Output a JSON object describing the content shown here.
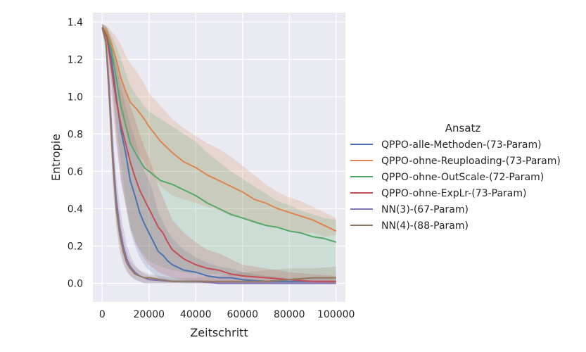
{
  "chart_data": {
    "type": "line",
    "xlabel": "Zeitschritt",
    "ylabel": "Entropie",
    "xlim": [
      -4000,
      104000
    ],
    "ylim": [
      -0.1,
      1.45
    ],
    "xticks": [
      0,
      20000,
      40000,
      60000,
      80000,
      100000
    ],
    "yticks": [
      0.0,
      0.2,
      0.4,
      0.6,
      0.8,
      1.0,
      1.2,
      1.4
    ],
    "grid": true,
    "legend": {
      "title": "Ansatz",
      "placement": "outside-right"
    },
    "series": [
      {
        "name": "QPPO-alle-Methoden-(73-Param)",
        "color": "#4c72b0",
        "x": [
          0,
          2000,
          4000,
          6000,
          8000,
          10000,
          12000,
          14000,
          16000,
          18000,
          20000,
          22000,
          24000,
          26000,
          28000,
          30000,
          35000,
          40000,
          45000,
          50000,
          55000,
          60000,
          70000,
          80000,
          90000,
          100000
        ],
        "y": [
          1.37,
          1.33,
          1.2,
          1.0,
          0.82,
          0.7,
          0.55,
          0.47,
          0.38,
          0.32,
          0.27,
          0.22,
          0.17,
          0.15,
          0.12,
          0.1,
          0.07,
          0.06,
          0.04,
          0.03,
          0.03,
          0.02,
          0.01,
          0.01,
          0.01,
          0.01
        ],
        "lower": [
          1.35,
          1.28,
          1.08,
          0.8,
          0.55,
          0.42,
          0.28,
          0.2,
          0.14,
          0.1,
          0.07,
          0.05,
          0.03,
          0.02,
          0.01,
          0.01,
          0.0,
          0.0,
          0.0,
          0.0,
          0.0,
          0.0,
          0.0,
          0.0,
          0.0,
          0.0
        ],
        "upper": [
          1.39,
          1.37,
          1.3,
          1.18,
          1.05,
          0.95,
          0.85,
          0.78,
          0.68,
          0.6,
          0.55,
          0.48,
          0.38,
          0.33,
          0.28,
          0.24,
          0.18,
          0.14,
          0.11,
          0.09,
          0.08,
          0.06,
          0.04,
          0.03,
          0.03,
          0.03
        ]
      },
      {
        "name": "QPPO-ohne-Reuploading-(73-Param)",
        "color": "#dd8452",
        "x": [
          0,
          2000,
          4000,
          6000,
          8000,
          10000,
          12000,
          15000,
          18000,
          20000,
          25000,
          30000,
          35000,
          40000,
          45000,
          50000,
          55000,
          60000,
          65000,
          70000,
          75000,
          80000,
          85000,
          90000,
          95000,
          100000
        ],
        "y": [
          1.37,
          1.35,
          1.28,
          1.2,
          1.1,
          1.03,
          0.97,
          0.93,
          0.88,
          0.84,
          0.76,
          0.7,
          0.65,
          0.62,
          0.58,
          0.55,
          0.52,
          0.49,
          0.45,
          0.43,
          0.4,
          0.38,
          0.36,
          0.34,
          0.31,
          0.28
        ],
        "lower": [
          1.35,
          1.32,
          1.2,
          1.05,
          0.9,
          0.82,
          0.75,
          0.7,
          0.65,
          0.6,
          0.52,
          0.47,
          0.45,
          0.43,
          0.41,
          0.39,
          0.36,
          0.35,
          0.32,
          0.31,
          0.3,
          0.28,
          0.27,
          0.27,
          0.25,
          0.26
        ],
        "upper": [
          1.39,
          1.38,
          1.35,
          1.32,
          1.28,
          1.22,
          1.18,
          1.13,
          1.07,
          1.02,
          0.95,
          0.88,
          0.83,
          0.79,
          0.75,
          0.72,
          0.68,
          0.63,
          0.58,
          0.53,
          0.49,
          0.46,
          0.44,
          0.41,
          0.38,
          0.35
        ]
      },
      {
        "name": "QPPO-ohne-OutScale-(72-Param)",
        "color": "#55a868",
        "x": [
          0,
          2000,
          4000,
          6000,
          8000,
          10000,
          12000,
          15000,
          18000,
          20000,
          25000,
          30000,
          35000,
          40000,
          45000,
          50000,
          55000,
          60000,
          65000,
          70000,
          75000,
          80000,
          85000,
          90000,
          95000,
          100000
        ],
        "y": [
          1.37,
          1.33,
          1.25,
          1.1,
          0.95,
          0.85,
          0.75,
          0.68,
          0.62,
          0.6,
          0.55,
          0.53,
          0.5,
          0.47,
          0.43,
          0.4,
          0.37,
          0.35,
          0.33,
          0.31,
          0.3,
          0.28,
          0.27,
          0.25,
          0.24,
          0.22
        ],
        "lower": [
          1.35,
          1.28,
          1.1,
          0.85,
          0.65,
          0.45,
          0.3,
          0.2,
          0.15,
          0.12,
          0.09,
          0.07,
          0.06,
          0.05,
          0.05,
          0.05,
          0.04,
          0.04,
          0.03,
          0.03,
          0.03,
          0.03,
          0.02,
          0.02,
          0.02,
          0.02
        ],
        "upper": [
          1.39,
          1.37,
          1.33,
          1.27,
          1.2,
          1.13,
          1.06,
          1.0,
          0.95,
          0.92,
          0.88,
          0.84,
          0.8,
          0.76,
          0.7,
          0.65,
          0.6,
          0.56,
          0.52,
          0.48,
          0.44,
          0.42,
          0.39,
          0.37,
          0.35,
          0.34
        ]
      },
      {
        "name": "QPPO-ohne-ExpLr-(73-Param)",
        "color": "#c44e52",
        "x": [
          0,
          2000,
          4000,
          6000,
          8000,
          10000,
          12000,
          14000,
          16000,
          18000,
          20000,
          22000,
          24000,
          26000,
          28000,
          30000,
          35000,
          40000,
          45000,
          50000,
          55000,
          60000,
          70000,
          80000,
          90000,
          100000
        ],
        "y": [
          1.37,
          1.32,
          1.15,
          0.98,
          0.85,
          0.75,
          0.65,
          0.57,
          0.5,
          0.45,
          0.4,
          0.35,
          0.3,
          0.27,
          0.22,
          0.18,
          0.13,
          0.1,
          0.08,
          0.07,
          0.05,
          0.04,
          0.03,
          0.02,
          0.01,
          0.01
        ],
        "lower": [
          1.35,
          1.25,
          1.0,
          0.75,
          0.55,
          0.42,
          0.3,
          0.22,
          0.17,
          0.13,
          0.1,
          0.08,
          0.06,
          0.05,
          0.04,
          0.03,
          0.02,
          0.01,
          0.0,
          0.0,
          0.0,
          0.0,
          0.0,
          0.0,
          0.0,
          0.0
        ],
        "upper": [
          1.39,
          1.37,
          1.3,
          1.2,
          1.1,
          1.03,
          0.95,
          0.88,
          0.8,
          0.73,
          0.67,
          0.6,
          0.52,
          0.46,
          0.4,
          0.34,
          0.27,
          0.22,
          0.18,
          0.16,
          0.13,
          0.1,
          0.08,
          0.06,
          0.05,
          0.04
        ]
      },
      {
        "name": "NN(3)-(67-Param)",
        "color": "#8172b3",
        "x": [
          0,
          1500,
          3000,
          4500,
          6000,
          7500,
          9000,
          10500,
          12000,
          14000,
          16000,
          18000,
          20000,
          25000,
          30000,
          40000,
          50000,
          60000,
          70000,
          80000,
          90000,
          100000
        ],
        "y": [
          1.37,
          1.3,
          1.05,
          0.7,
          0.45,
          0.3,
          0.2,
          0.13,
          0.09,
          0.06,
          0.04,
          0.03,
          0.02,
          0.015,
          0.01,
          0.01,
          0.0,
          0.0,
          0.0,
          0.0,
          0.0,
          0.0
        ],
        "lower": [
          1.35,
          1.25,
          0.95,
          0.58,
          0.33,
          0.2,
          0.12,
          0.07,
          0.04,
          0.02,
          0.01,
          0.0,
          0.0,
          0.0,
          0.0,
          0.0,
          0.0,
          0.0,
          0.0,
          0.0,
          0.0,
          0.0
        ],
        "upper": [
          1.39,
          1.35,
          1.15,
          0.82,
          0.58,
          0.42,
          0.3,
          0.21,
          0.15,
          0.1,
          0.07,
          0.05,
          0.04,
          0.03,
          0.02,
          0.02,
          0.01,
          0.01,
          0.01,
          0.01,
          0.01,
          0.01
        ]
      },
      {
        "name": "NN(4)-(88-Param)",
        "color": "#937860",
        "x": [
          0,
          1500,
          3000,
          4500,
          6000,
          7500,
          9000,
          10500,
          12000,
          14000,
          16000,
          18000,
          20000,
          25000,
          30000,
          40000,
          50000,
          60000,
          70000,
          80000,
          90000,
          100000
        ],
        "y": [
          1.37,
          1.3,
          1.0,
          0.65,
          0.4,
          0.26,
          0.17,
          0.11,
          0.08,
          0.05,
          0.04,
          0.03,
          0.03,
          0.02,
          0.01,
          0.01,
          0.01,
          0.01,
          0.01,
          0.02,
          0.03,
          0.03
        ],
        "lower": [
          1.35,
          1.25,
          0.9,
          0.52,
          0.3,
          0.17,
          0.1,
          0.06,
          0.04,
          0.02,
          0.01,
          0.0,
          0.0,
          0.0,
          0.0,
          0.0,
          0.0,
          0.0,
          0.0,
          0.0,
          0.0,
          0.0
        ],
        "upper": [
          1.39,
          1.35,
          1.12,
          0.78,
          0.52,
          0.36,
          0.25,
          0.17,
          0.12,
          0.09,
          0.07,
          0.06,
          0.05,
          0.04,
          0.03,
          0.03,
          0.04,
          0.06,
          0.07,
          0.08,
          0.08,
          0.09
        ]
      }
    ]
  }
}
